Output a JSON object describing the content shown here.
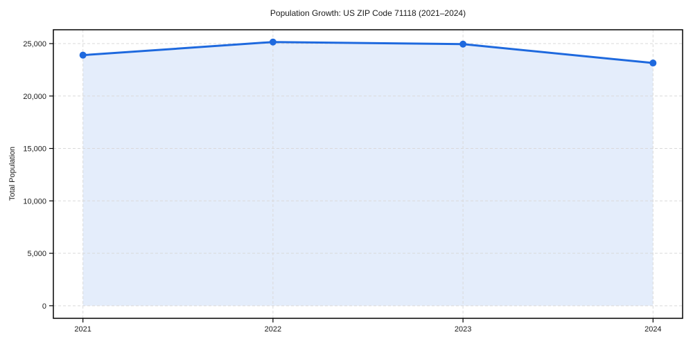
{
  "chart_data": {
    "type": "line",
    "title": "Population Growth: US ZIP Code 71118 (2021–2024)",
    "xlabel": "",
    "ylabel": "Total Population",
    "x": [
      2021,
      2022,
      2023,
      2024
    ],
    "x_tick_labels": [
      "2021",
      "2022",
      "2023",
      "2024"
    ],
    "series": [
      {
        "name": "Total Population",
        "values": [
          23900,
          25150,
          24950,
          23150
        ]
      }
    ],
    "y_ticks": [
      0,
      5000,
      10000,
      15000,
      20000,
      25000
    ],
    "y_tick_labels": [
      "0",
      "5,000",
      "10,000",
      "15,000",
      "20,000",
      "25,000"
    ],
    "ylim": [
      -1200,
      26320
    ],
    "x_margin_frac": 0.047,
    "grid": {
      "visible": true,
      "style": "dashed",
      "axes": "both"
    },
    "legend": {
      "visible": false
    },
    "marker": "circle",
    "area_fill": true,
    "colors": {
      "line": "#1e69de",
      "marker": "#1e69de",
      "area_fill": "#1e69de",
      "area_opacity": 0.12,
      "grid": "#d9d9d9",
      "spine": "#000000",
      "text": "#1a1a1a",
      "background": "#ffffff"
    }
  }
}
